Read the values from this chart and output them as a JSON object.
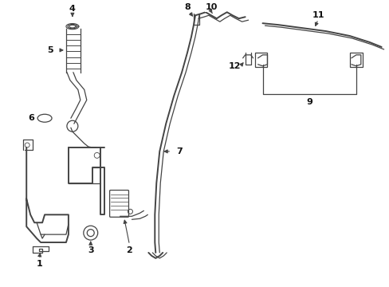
{
  "bg_color": "#ffffff",
  "line_color": "#444444",
  "label_color": "#111111",
  "figsize": [
    4.89,
    3.6
  ],
  "dpi": 100,
  "lw_main": 1.4,
  "lw_thin": 0.9,
  "lw_tube": 1.2,
  "fs_label": 8.0
}
